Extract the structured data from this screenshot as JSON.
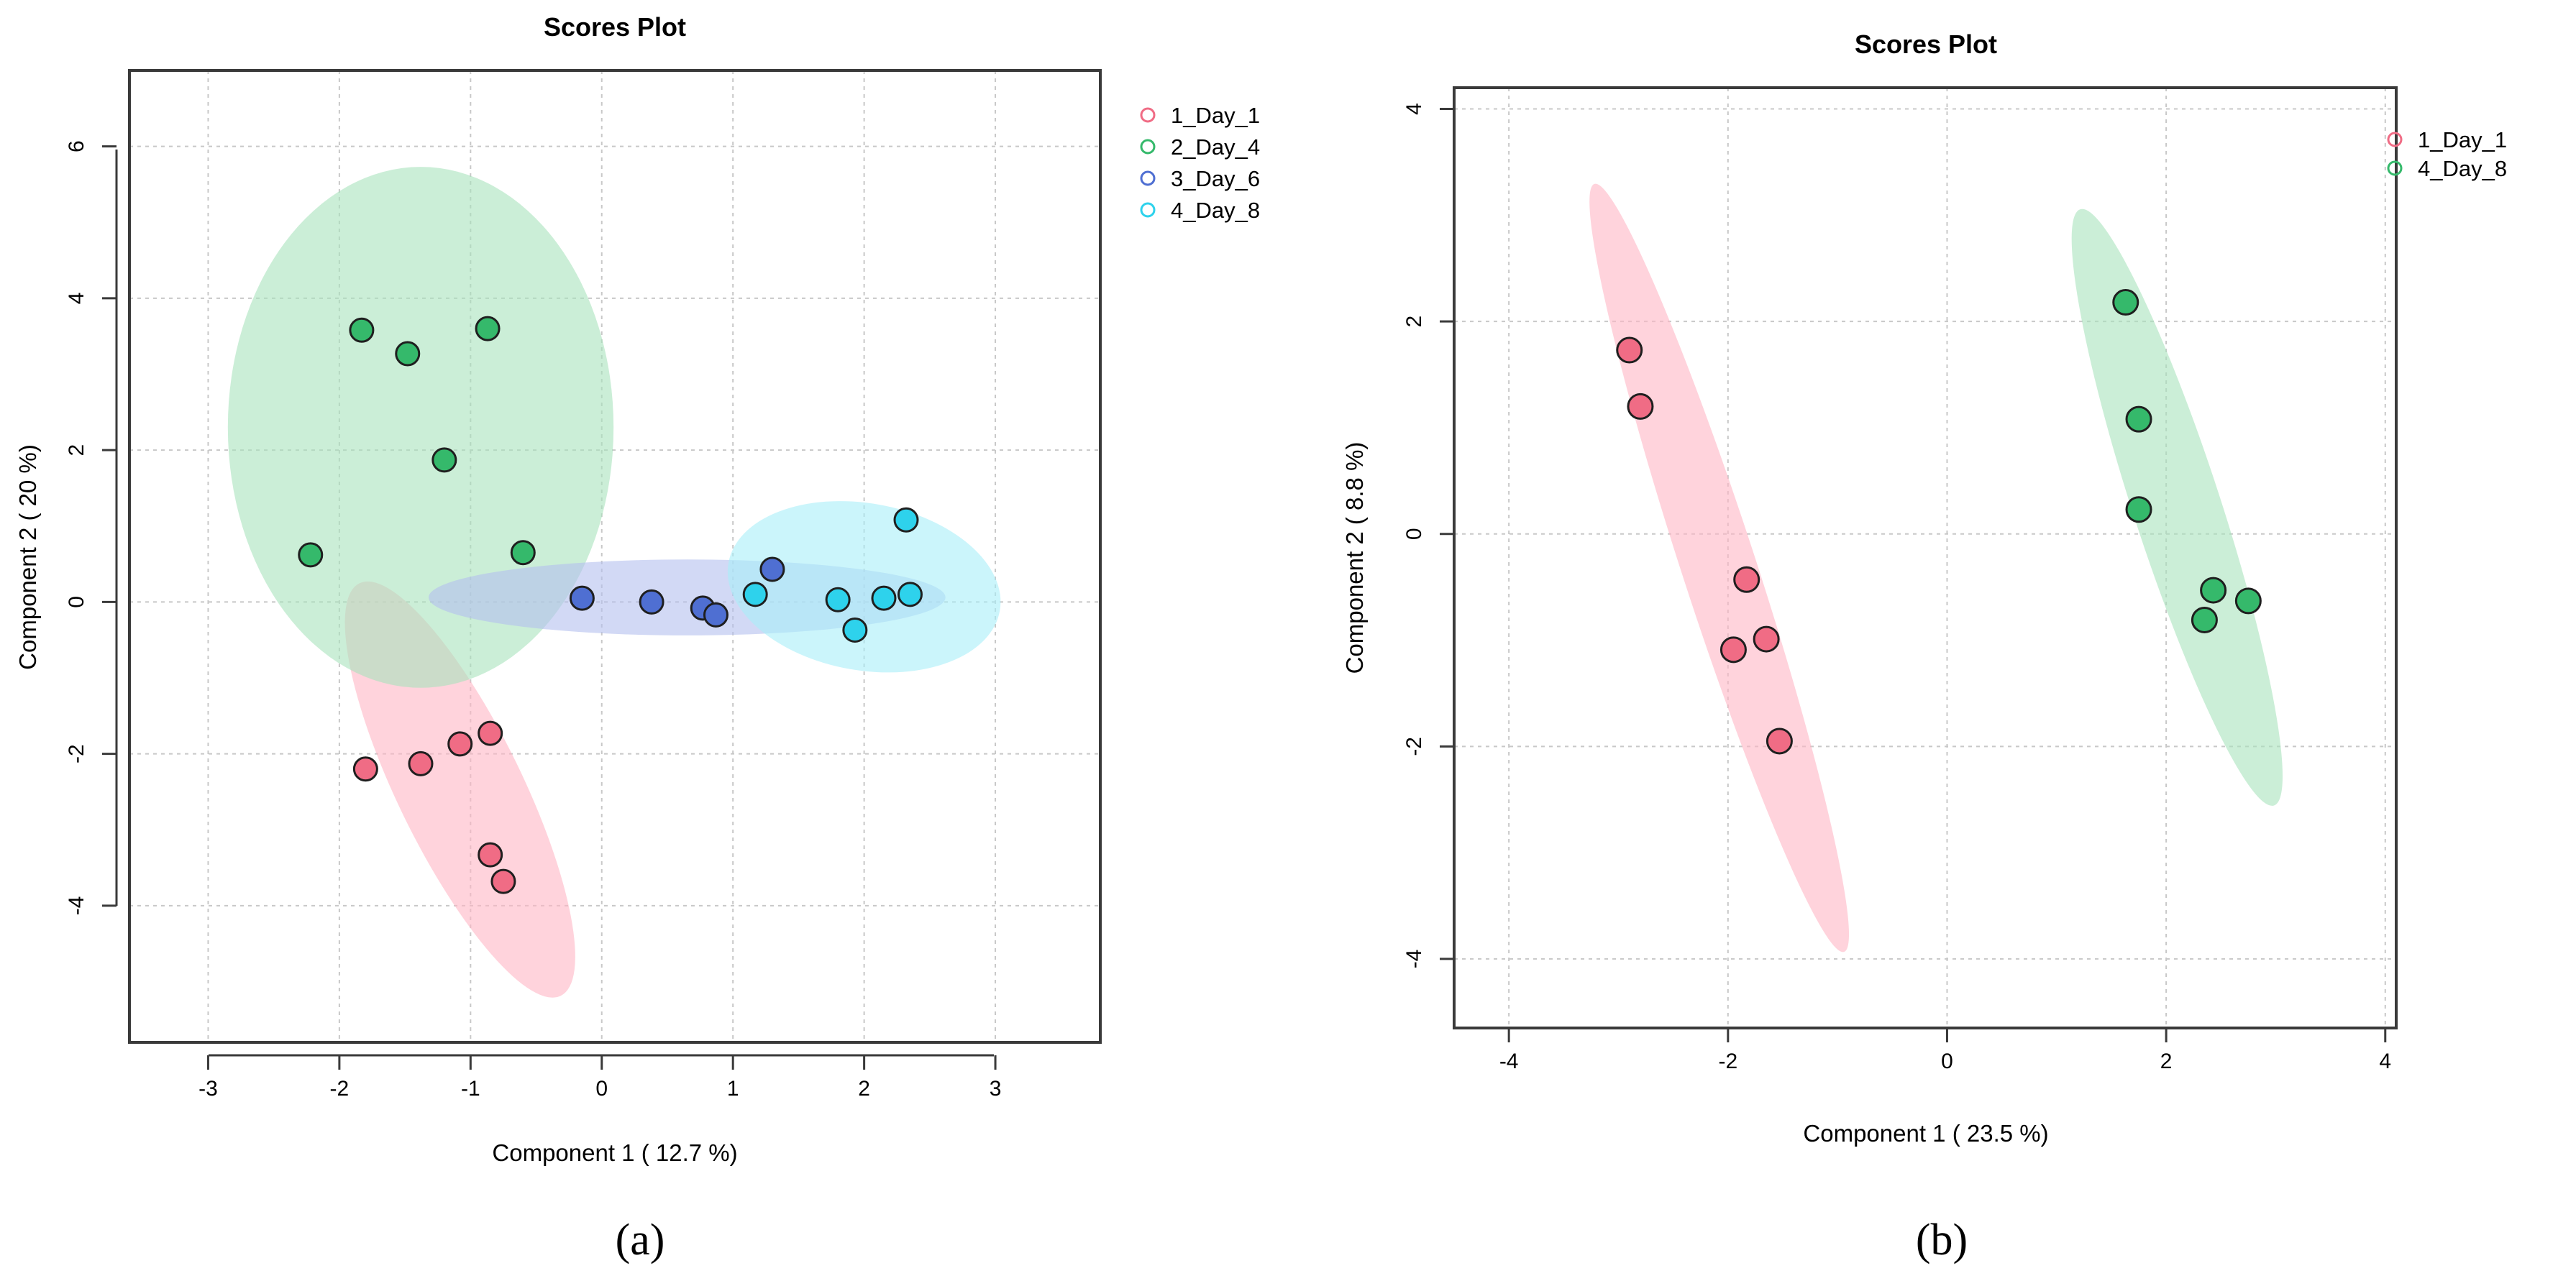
{
  "chart_data": [
    {
      "type": "scatter",
      "panel": "a",
      "title": "Scores Plot",
      "xlabel": "Component 1 ( 12.7 %)",
      "ylabel": "Component 2 ( 20 %)",
      "xlim": [
        -3.6,
        3.8
      ],
      "ylim": [
        -5.8,
        7.0
      ],
      "xticks": [
        -3,
        -2,
        -1,
        0,
        1,
        2,
        3
      ],
      "yticks": [
        -4,
        -2,
        0,
        2,
        4,
        6
      ],
      "grid": true,
      "legend_position": "outside-top-right",
      "series": [
        {
          "name": "1_Day_1",
          "color": "#f06c85",
          "fill": "#ffb6c4",
          "points": [
            [
              -1.8,
              -2.2
            ],
            [
              -1.38,
              -2.13
            ],
            [
              -1.08,
              -1.87
            ],
            [
              -0.85,
              -1.73
            ],
            [
              -0.85,
              -3.33
            ],
            [
              -0.75,
              -3.68
            ]
          ],
          "ellipse": {
            "cx": -1.08,
            "cy": -2.47,
            "rx": 1.75,
            "ry": 0.82,
            "angle_deg": 64
          }
        },
        {
          "name": "2_Day_4",
          "color": "#35b96b",
          "fill": "#a8e2bd",
          "points": [
            [
              -2.22,
              0.62
            ],
            [
              -1.83,
              3.58
            ],
            [
              -1.48,
              3.27
            ],
            [
              -0.87,
              3.6
            ],
            [
              -1.2,
              1.87
            ],
            [
              -0.6,
              0.65
            ]
          ],
          "ellipse": {
            "cx": -1.38,
            "cy": 2.3,
            "rx": 1.47,
            "ry": 3.43,
            "angle_deg": 0
          }
        },
        {
          "name": "3_Day_6",
          "color": "#4f6fd2",
          "fill": "#b4c0ee",
          "points": [
            [
              -0.15,
              0.05
            ],
            [
              0.38,
              0.0
            ],
            [
              0.77,
              -0.08
            ],
            [
              0.87,
              -0.17
            ],
            [
              1.3,
              0.43
            ]
          ],
          "ellipse": {
            "cx": 0.65,
            "cy": 0.06,
            "rx": 1.97,
            "ry": 0.5,
            "angle_deg": 0
          }
        },
        {
          "name": "4_Day_8",
          "color": "#2ed2ec",
          "fill": "#a9eef8",
          "points": [
            [
              1.17,
              0.1
            ],
            [
              1.8,
              0.03
            ],
            [
              1.93,
              -0.37
            ],
            [
              2.15,
              0.05
            ],
            [
              2.32,
              1.08
            ],
            [
              2.35,
              0.1
            ]
          ],
          "ellipse": {
            "cx": 2.0,
            "cy": 0.2,
            "rx": 1.05,
            "ry": 1.1,
            "angle_deg": 10
          }
        }
      ]
    },
    {
      "type": "scatter",
      "panel": "b",
      "title": "Scores Plot",
      "xlabel": "Component 1 ( 23.5 %)",
      "ylabel": "Component 2 ( 8.8 %)",
      "xlim": [
        -4.5,
        4.1
      ],
      "ylim": [
        -4.65,
        4.2
      ],
      "xticks": [
        -4,
        -2,
        0,
        2,
        4
      ],
      "yticks": [
        -4,
        -2,
        0,
        2,
        4
      ],
      "grid": true,
      "legend_position": "outside-top-right",
      "series": [
        {
          "name": "1_Day_1",
          "color": "#f06c85",
          "fill": "#ffb6c4",
          "points": [
            [
              -2.9,
              1.73
            ],
            [
              -2.8,
              1.2
            ],
            [
              -1.83,
              -0.43
            ],
            [
              -1.65,
              -0.99
            ],
            [
              -1.95,
              -1.09
            ],
            [
              -1.53,
              -1.95
            ]
          ],
          "ellipse": {
            "cx": -2.08,
            "cy": -0.32,
            "rx": 0.34,
            "ry": 3.8,
            "angle_deg": -18
          }
        },
        {
          "name": "4_Day_8",
          "color": "#35b96b",
          "fill": "#a8e2bd",
          "points": [
            [
              1.63,
              2.18
            ],
            [
              1.75,
              1.08
            ],
            [
              1.75,
              0.23
            ],
            [
              2.43,
              -0.53
            ],
            [
              2.35,
              -0.81
            ],
            [
              2.75,
              -0.63
            ]
          ],
          "ellipse": {
            "cx": 2.1,
            "cy": 0.25,
            "rx": 0.4,
            "ry": 2.95,
            "angle_deg": -18
          }
        }
      ]
    }
  ],
  "captions": {
    "a": "(a)",
    "b": "(b)"
  }
}
